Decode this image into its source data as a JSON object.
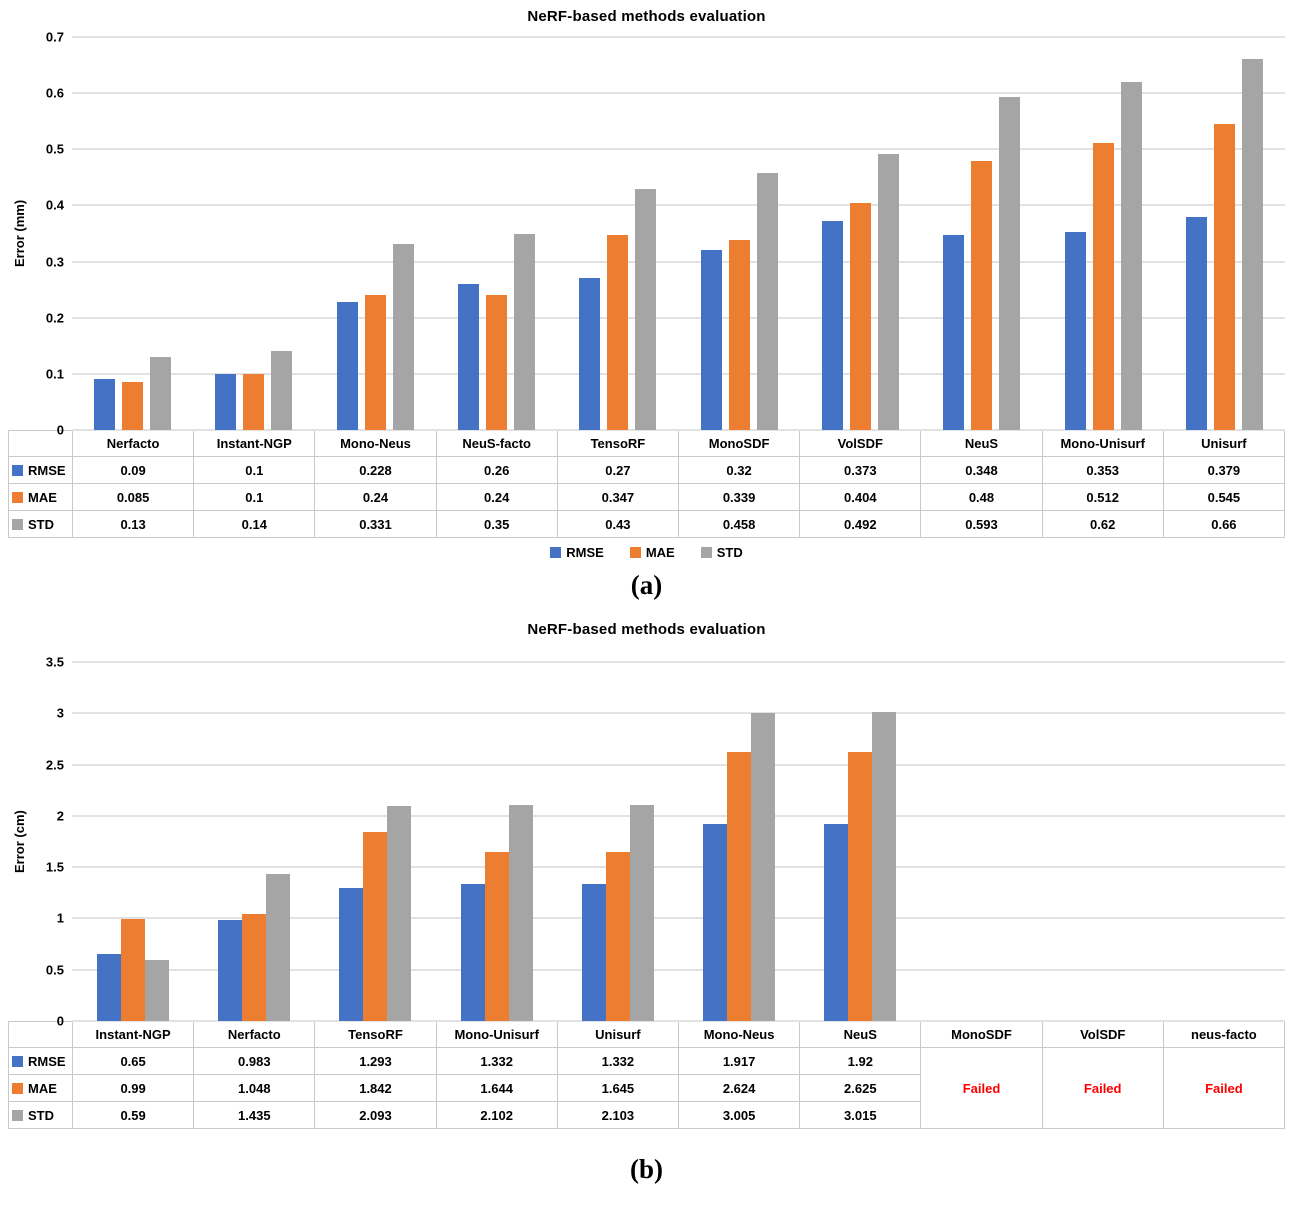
{
  "figures": [
    {
      "caption": "(a)",
      "show_legend": true,
      "chart_data": {
        "type": "bar",
        "title": "NeRF-based methods evaluation",
        "ylabel": "Error (mm)",
        "ylim": [
          0,
          0.7
        ],
        "yticks": [
          0.7,
          0.6,
          0.5,
          0.4,
          0.3,
          0.2,
          0.1,
          0
        ],
        "grid": true,
        "legend_position": "bottom",
        "legend_entries": [
          "RMSE",
          "MAE",
          "STD"
        ],
        "categories": [
          "Nerfacto",
          "Instant-NGP",
          "Mono-Neus",
          "NeuS-facto",
          "TensoRF",
          "MonoSDF",
          "VolSDF",
          "NeuS",
          "Mono-Unisurf",
          "Unisurf"
        ],
        "series": [
          {
            "name": "RMSE",
            "color": "#4472C4",
            "values": [
              0.09,
              0.1,
              0.228,
              0.26,
              0.27,
              0.32,
              0.373,
              0.348,
              0.353,
              0.379
            ]
          },
          {
            "name": "MAE",
            "color": "#ED7D31",
            "values": [
              0.085,
              0.1,
              0.24,
              0.24,
              0.347,
              0.339,
              0.404,
              0.48,
              0.512,
              0.545
            ]
          },
          {
            "name": "STD",
            "color": "#A5A5A5",
            "values": [
              0.13,
              0.14,
              0.331,
              0.35,
              0.43,
              0.458,
              0.492,
              0.593,
              0.62,
              0.66
            ]
          }
        ]
      }
    },
    {
      "caption": "(b)",
      "show_legend": false,
      "chart_data": {
        "type": "bar",
        "title": "NeRF-based methods evaluation",
        "ylabel": "Error (cm)",
        "ylim": [
          0,
          3.5
        ],
        "yticks": [
          3.5,
          3,
          2.5,
          2,
          1.5,
          1,
          0.5,
          0
        ],
        "grid": true,
        "failed_label": "Failed",
        "failed_color": "#FF0000",
        "categories": [
          "Instant-NGP",
          "Nerfacto",
          "TensoRF",
          "Mono-Unisurf",
          "Unisurf",
          "Mono-Neus",
          "NeuS",
          "MonoSDF",
          "VolSDF",
          "neus-facto"
        ],
        "series": [
          {
            "name": "RMSE",
            "color": "#4472C4",
            "values": [
              0.65,
              0.983,
              1.293,
              1.332,
              1.332,
              1.917,
              1.92,
              null,
              null,
              null
            ]
          },
          {
            "name": "MAE",
            "color": "#ED7D31",
            "values": [
              0.99,
              1.048,
              1.842,
              1.644,
              1.645,
              2.624,
              2.625,
              null,
              null,
              null
            ]
          },
          {
            "name": "STD",
            "color": "#A5A5A5",
            "values": [
              0.59,
              1.435,
              2.093,
              2.102,
              2.103,
              3.005,
              3.015,
              null,
              null,
              null
            ]
          }
        ]
      }
    }
  ]
}
